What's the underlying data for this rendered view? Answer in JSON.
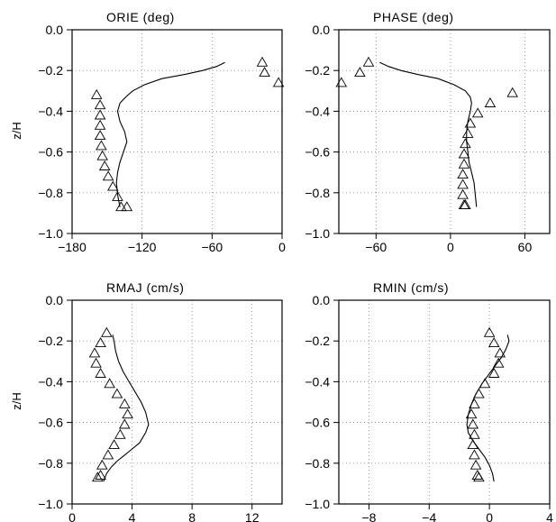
{
  "figure": {
    "ylabel": "z/H"
  },
  "chart_data": [
    {
      "type": "line",
      "title": "ORIE (deg)",
      "ylabel": "z/H",
      "xlim": [
        -180,
        0
      ],
      "ylim": [
        -1.0,
        0.0
      ],
      "xticks": [
        -180,
        -120,
        -60,
        0
      ],
      "yticks": [
        0.0,
        -0.2,
        -0.4,
        -0.6,
        -0.8,
        -1.0
      ],
      "grid": true,
      "series": [
        {
          "kind": "line",
          "x": [
            -49,
            -56,
            -68,
            -84,
            -103,
            -118,
            -128,
            -134,
            -139,
            -141,
            -139,
            -135,
            -133,
            -136,
            -139,
            -141,
            -142,
            -141,
            -139
          ],
          "y": [
            -0.16,
            -0.18,
            -0.2,
            -0.22,
            -0.24,
            -0.27,
            -0.3,
            -0.33,
            -0.36,
            -0.4,
            -0.45,
            -0.5,
            -0.55,
            -0.6,
            -0.65,
            -0.7,
            -0.75,
            -0.81,
            -0.87
          ]
        },
        {
          "kind": "markers",
          "marker": "triangle",
          "x": [
            -17,
            -15,
            -3,
            -159,
            -156,
            -156,
            -156,
            -156,
            -155,
            -154,
            -152,
            -149,
            -145,
            -141,
            -138,
            -133
          ],
          "y": [
            -0.16,
            -0.21,
            -0.26,
            -0.32,
            -0.37,
            -0.42,
            -0.47,
            -0.52,
            -0.57,
            -0.62,
            -0.67,
            -0.72,
            -0.77,
            -0.82,
            -0.87,
            -0.87
          ]
        }
      ]
    },
    {
      "type": "line",
      "title": "PHASE (deg)",
      "xlim": [
        -90,
        80
      ],
      "ylim": [
        -1.0,
        0.0
      ],
      "xticks": [
        -60,
        0,
        60
      ],
      "yticks": [
        0.0,
        -0.2,
        -0.4,
        -0.6,
        -0.8,
        -1.0
      ],
      "grid": true,
      "series": [
        {
          "kind": "line",
          "x": [
            -57,
            -50,
            -40,
            -26,
            -10,
            3,
            12,
            16,
            17,
            16,
            14,
            13,
            13,
            14,
            15,
            17,
            19,
            20,
            21
          ],
          "y": [
            -0.16,
            -0.18,
            -0.2,
            -0.22,
            -0.24,
            -0.27,
            -0.3,
            -0.33,
            -0.36,
            -0.4,
            -0.45,
            -0.5,
            -0.55,
            -0.6,
            -0.65,
            -0.7,
            -0.75,
            -0.81,
            -0.87
          ]
        },
        {
          "kind": "markers",
          "marker": "triangle",
          "x": [
            -66,
            -73,
            -88,
            50,
            32,
            22,
            16,
            14,
            12,
            11,
            11,
            10,
            10,
            10,
            11,
            12
          ],
          "y": [
            -0.16,
            -0.21,
            -0.26,
            -0.31,
            -0.36,
            -0.41,
            -0.46,
            -0.51,
            -0.56,
            -0.61,
            -0.66,
            -0.71,
            -0.76,
            -0.81,
            -0.86,
            -0.86
          ]
        }
      ]
    },
    {
      "type": "line",
      "title": "RMAJ (cm/s)",
      "ylabel": "z/H",
      "xlim": [
        0,
        14
      ],
      "ylim": [
        -1.0,
        0.0
      ],
      "xticks": [
        0,
        4,
        8,
        12
      ],
      "yticks": [
        0.0,
        -0.2,
        -0.4,
        -0.6,
        -0.8,
        -1.0
      ],
      "grid": true,
      "series": [
        {
          "kind": "line",
          "x": [
            2.7,
            2.8,
            2.9,
            3.1,
            3.4,
            3.8,
            4.2,
            4.6,
            4.9,
            5.1,
            4.9,
            4.5,
            4.0,
            3.5,
            3.0,
            2.6,
            2.3,
            2.1
          ],
          "y": [
            -0.17,
            -0.2,
            -0.25,
            -0.3,
            -0.35,
            -0.4,
            -0.45,
            -0.5,
            -0.55,
            -0.61,
            -0.65,
            -0.7,
            -0.73,
            -0.76,
            -0.79,
            -0.82,
            -0.85,
            -0.89
          ]
        },
        {
          "kind": "markers",
          "marker": "triangle",
          "x": [
            2.3,
            1.9,
            1.5,
            1.6,
            1.9,
            2.5,
            3.0,
            3.5,
            3.7,
            3.5,
            3.2,
            2.8,
            2.4,
            2.0,
            1.9,
            1.7
          ],
          "y": [
            -0.16,
            -0.21,
            -0.26,
            -0.31,
            -0.36,
            -0.41,
            -0.46,
            -0.51,
            -0.56,
            -0.61,
            -0.66,
            -0.71,
            -0.76,
            -0.81,
            -0.86,
            -0.87
          ]
        }
      ]
    },
    {
      "type": "line",
      "title": "RMIN (cm/s)",
      "xlim": [
        -10,
        4
      ],
      "ylim": [
        -1.0,
        0.0
      ],
      "xticks": [
        -8,
        -4,
        0,
        4
      ],
      "yticks": [
        0.0,
        -0.2,
        -0.4,
        -0.6,
        -0.8,
        -1.0
      ],
      "grid": true,
      "series": [
        {
          "kind": "line",
          "x": [
            1.2,
            1.3,
            1.1,
            0.8,
            0.4,
            0.0,
            -0.5,
            -0.9,
            -1.2,
            -1.4,
            -1.5,
            -1.4,
            -1.1,
            -0.7,
            -0.3,
            0.0,
            0.2,
            0.3
          ],
          "y": [
            -0.17,
            -0.2,
            -0.24,
            -0.28,
            -0.32,
            -0.36,
            -0.41,
            -0.46,
            -0.51,
            -0.56,
            -0.61,
            -0.65,
            -0.69,
            -0.73,
            -0.77,
            -0.81,
            -0.85,
            -0.89
          ]
        },
        {
          "kind": "markers",
          "marker": "triangle",
          "x": [
            0.0,
            0.3,
            0.7,
            0.6,
            0.3,
            -0.3,
            -0.7,
            -1.0,
            -1.2,
            -1.1,
            -1.0,
            -1.1,
            -1.0,
            -0.9,
            -0.8,
            -0.7
          ],
          "y": [
            -0.16,
            -0.21,
            -0.26,
            -0.31,
            -0.36,
            -0.41,
            -0.46,
            -0.51,
            -0.56,
            -0.61,
            -0.66,
            -0.71,
            -0.76,
            -0.81,
            -0.86,
            -0.87
          ]
        }
      ]
    }
  ]
}
